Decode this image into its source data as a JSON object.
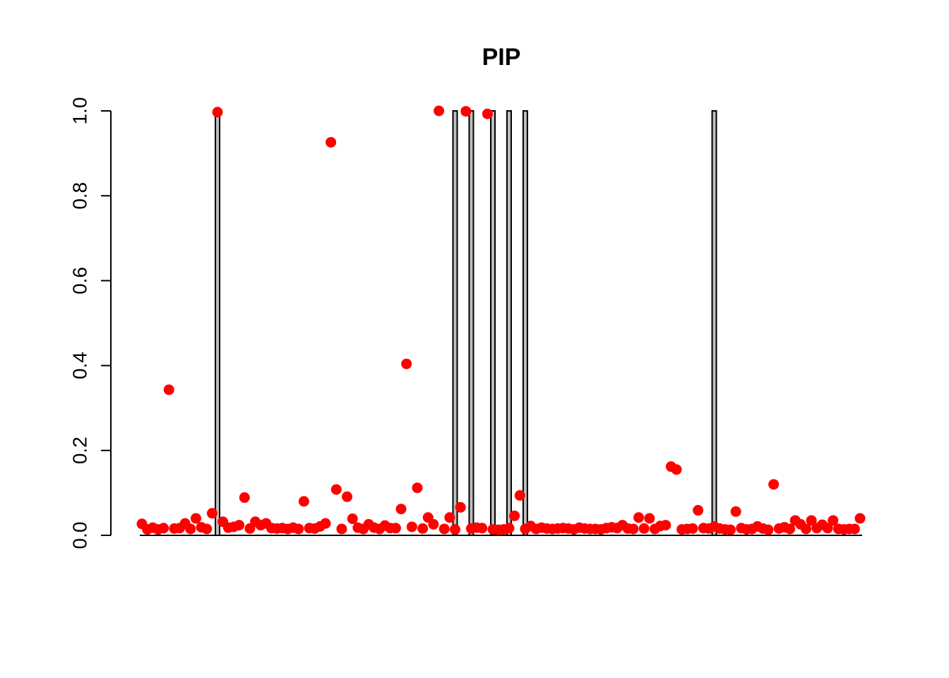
{
  "chart_data": {
    "type": "bar",
    "title": "PIP",
    "xlabel": "",
    "ylabel": "",
    "ylim": [
      0,
      1
    ],
    "yticks": [
      "0.0",
      "0.2",
      "0.4",
      "0.6",
      "0.8",
      "1.0"
    ],
    "grid": false,
    "legend": "none",
    "n": 134,
    "bars": {
      "name": "",
      "color": "#bebebe",
      "stroke": "#000000",
      "values_at_index": [
        {
          "i": 14,
          "value": 1
        },
        {
          "i": 58,
          "value": 1
        },
        {
          "i": 61,
          "value": 1
        },
        {
          "i": 65,
          "value": 1
        },
        {
          "i": 68,
          "value": 1
        },
        {
          "i": 71,
          "value": 1
        },
        {
          "i": 106,
          "value": 1
        }
      ]
    },
    "points": {
      "name": "",
      "color": "#ff0000",
      "values": [
        0.027,
        0.014,
        0.018,
        0.014,
        0.017,
        0.343,
        0.016,
        0.017,
        0.028,
        0.015,
        0.04,
        0.019,
        0.015,
        0.052,
        0.997,
        0.032,
        0.018,
        0.02,
        0.024,
        0.089,
        0.016,
        0.032,
        0.024,
        0.028,
        0.017,
        0.016,
        0.017,
        0.015,
        0.018,
        0.015,
        0.08,
        0.017,
        0.016,
        0.021,
        0.028,
        0.926,
        0.108,
        0.015,
        0.091,
        0.039,
        0.018,
        0.015,
        0.026,
        0.018,
        0.015,
        0.023,
        0.017,
        0.017,
        0.062,
        0.404,
        0.02,
        0.112,
        0.016,
        0.042,
        0.026,
        1.0,
        0.015,
        0.042,
        0.014,
        0.066,
        0.999,
        0.016,
        0.018,
        0.017,
        0.993,
        0.014,
        0.013,
        0.014,
        0.017,
        0.046,
        0.094,
        0.015,
        0.022,
        0.015,
        0.018,
        0.016,
        0.015,
        0.016,
        0.017,
        0.016,
        0.014,
        0.018,
        0.016,
        0.015,
        0.015,
        0.014,
        0.017,
        0.019,
        0.017,
        0.024,
        0.016,
        0.015,
        0.042,
        0.016,
        0.04,
        0.015,
        0.022,
        0.024,
        0.162,
        0.155,
        0.014,
        0.015,
        0.016,
        0.059,
        0.017,
        0.016,
        0.021,
        0.016,
        0.014,
        0.013,
        0.056,
        0.017,
        0.014,
        0.015,
        0.021,
        0.016,
        0.013,
        0.12,
        0.016,
        0.019,
        0.015,
        0.035,
        0.026,
        0.015,
        0.035,
        0.017,
        0.025,
        0.017,
        0.035,
        0.015,
        0.014,
        0.015,
        0.015,
        0.04
      ]
    }
  }
}
